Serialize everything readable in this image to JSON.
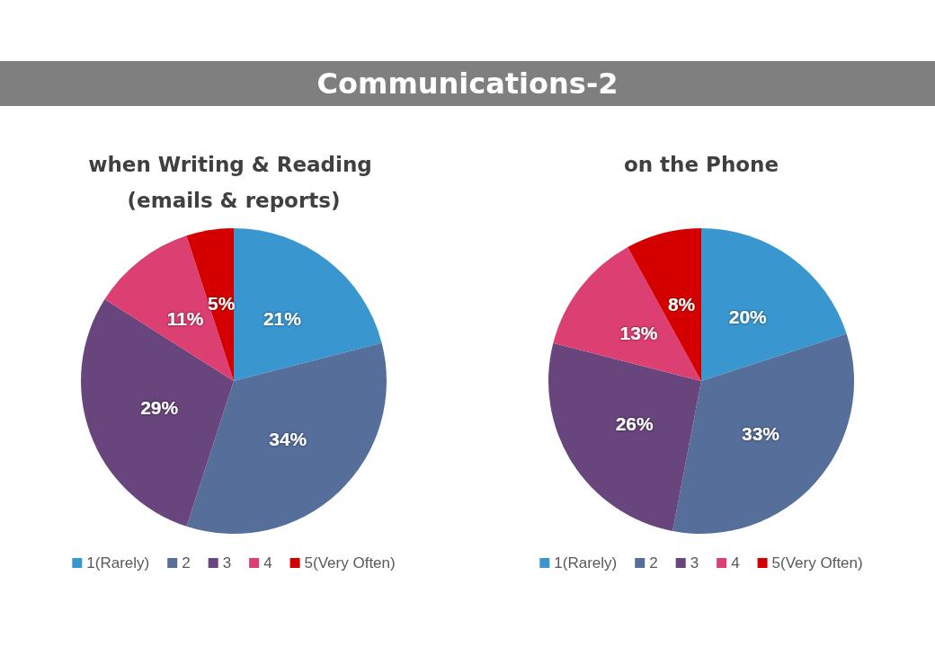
{
  "chart_data": [
    {
      "type": "other",
      "title": "Communications-2"
    },
    {
      "type": "pie",
      "title": "when Writing & Reading (emails & reports)",
      "categories": [
        "1(Rarely)",
        "2",
        "3",
        "4",
        "5(Very Often)"
      ],
      "values": [
        21,
        34,
        29,
        11,
        5
      ],
      "value_labels": [
        "21%",
        "34%",
        "29%",
        "11%",
        "5%"
      ],
      "colors": [
        "#3a96cf",
        "#566e9a",
        "#68457c",
        "#dc3f72",
        "#d40000"
      ],
      "legend": "bottom"
    },
    {
      "type": "pie",
      "title": "on the Phone",
      "categories": [
        "1(Rarely)",
        "2",
        "3",
        "4",
        "5(Very Often)"
      ],
      "values": [
        20,
        33,
        26,
        13,
        8
      ],
      "value_labels": [
        "20%",
        "33%",
        "26%",
        "13%",
        "8%"
      ],
      "colors": [
        "#3a96cf",
        "#566e9a",
        "#68457c",
        "#dc3f72",
        "#d40000"
      ],
      "legend": "bottom"
    }
  ]
}
